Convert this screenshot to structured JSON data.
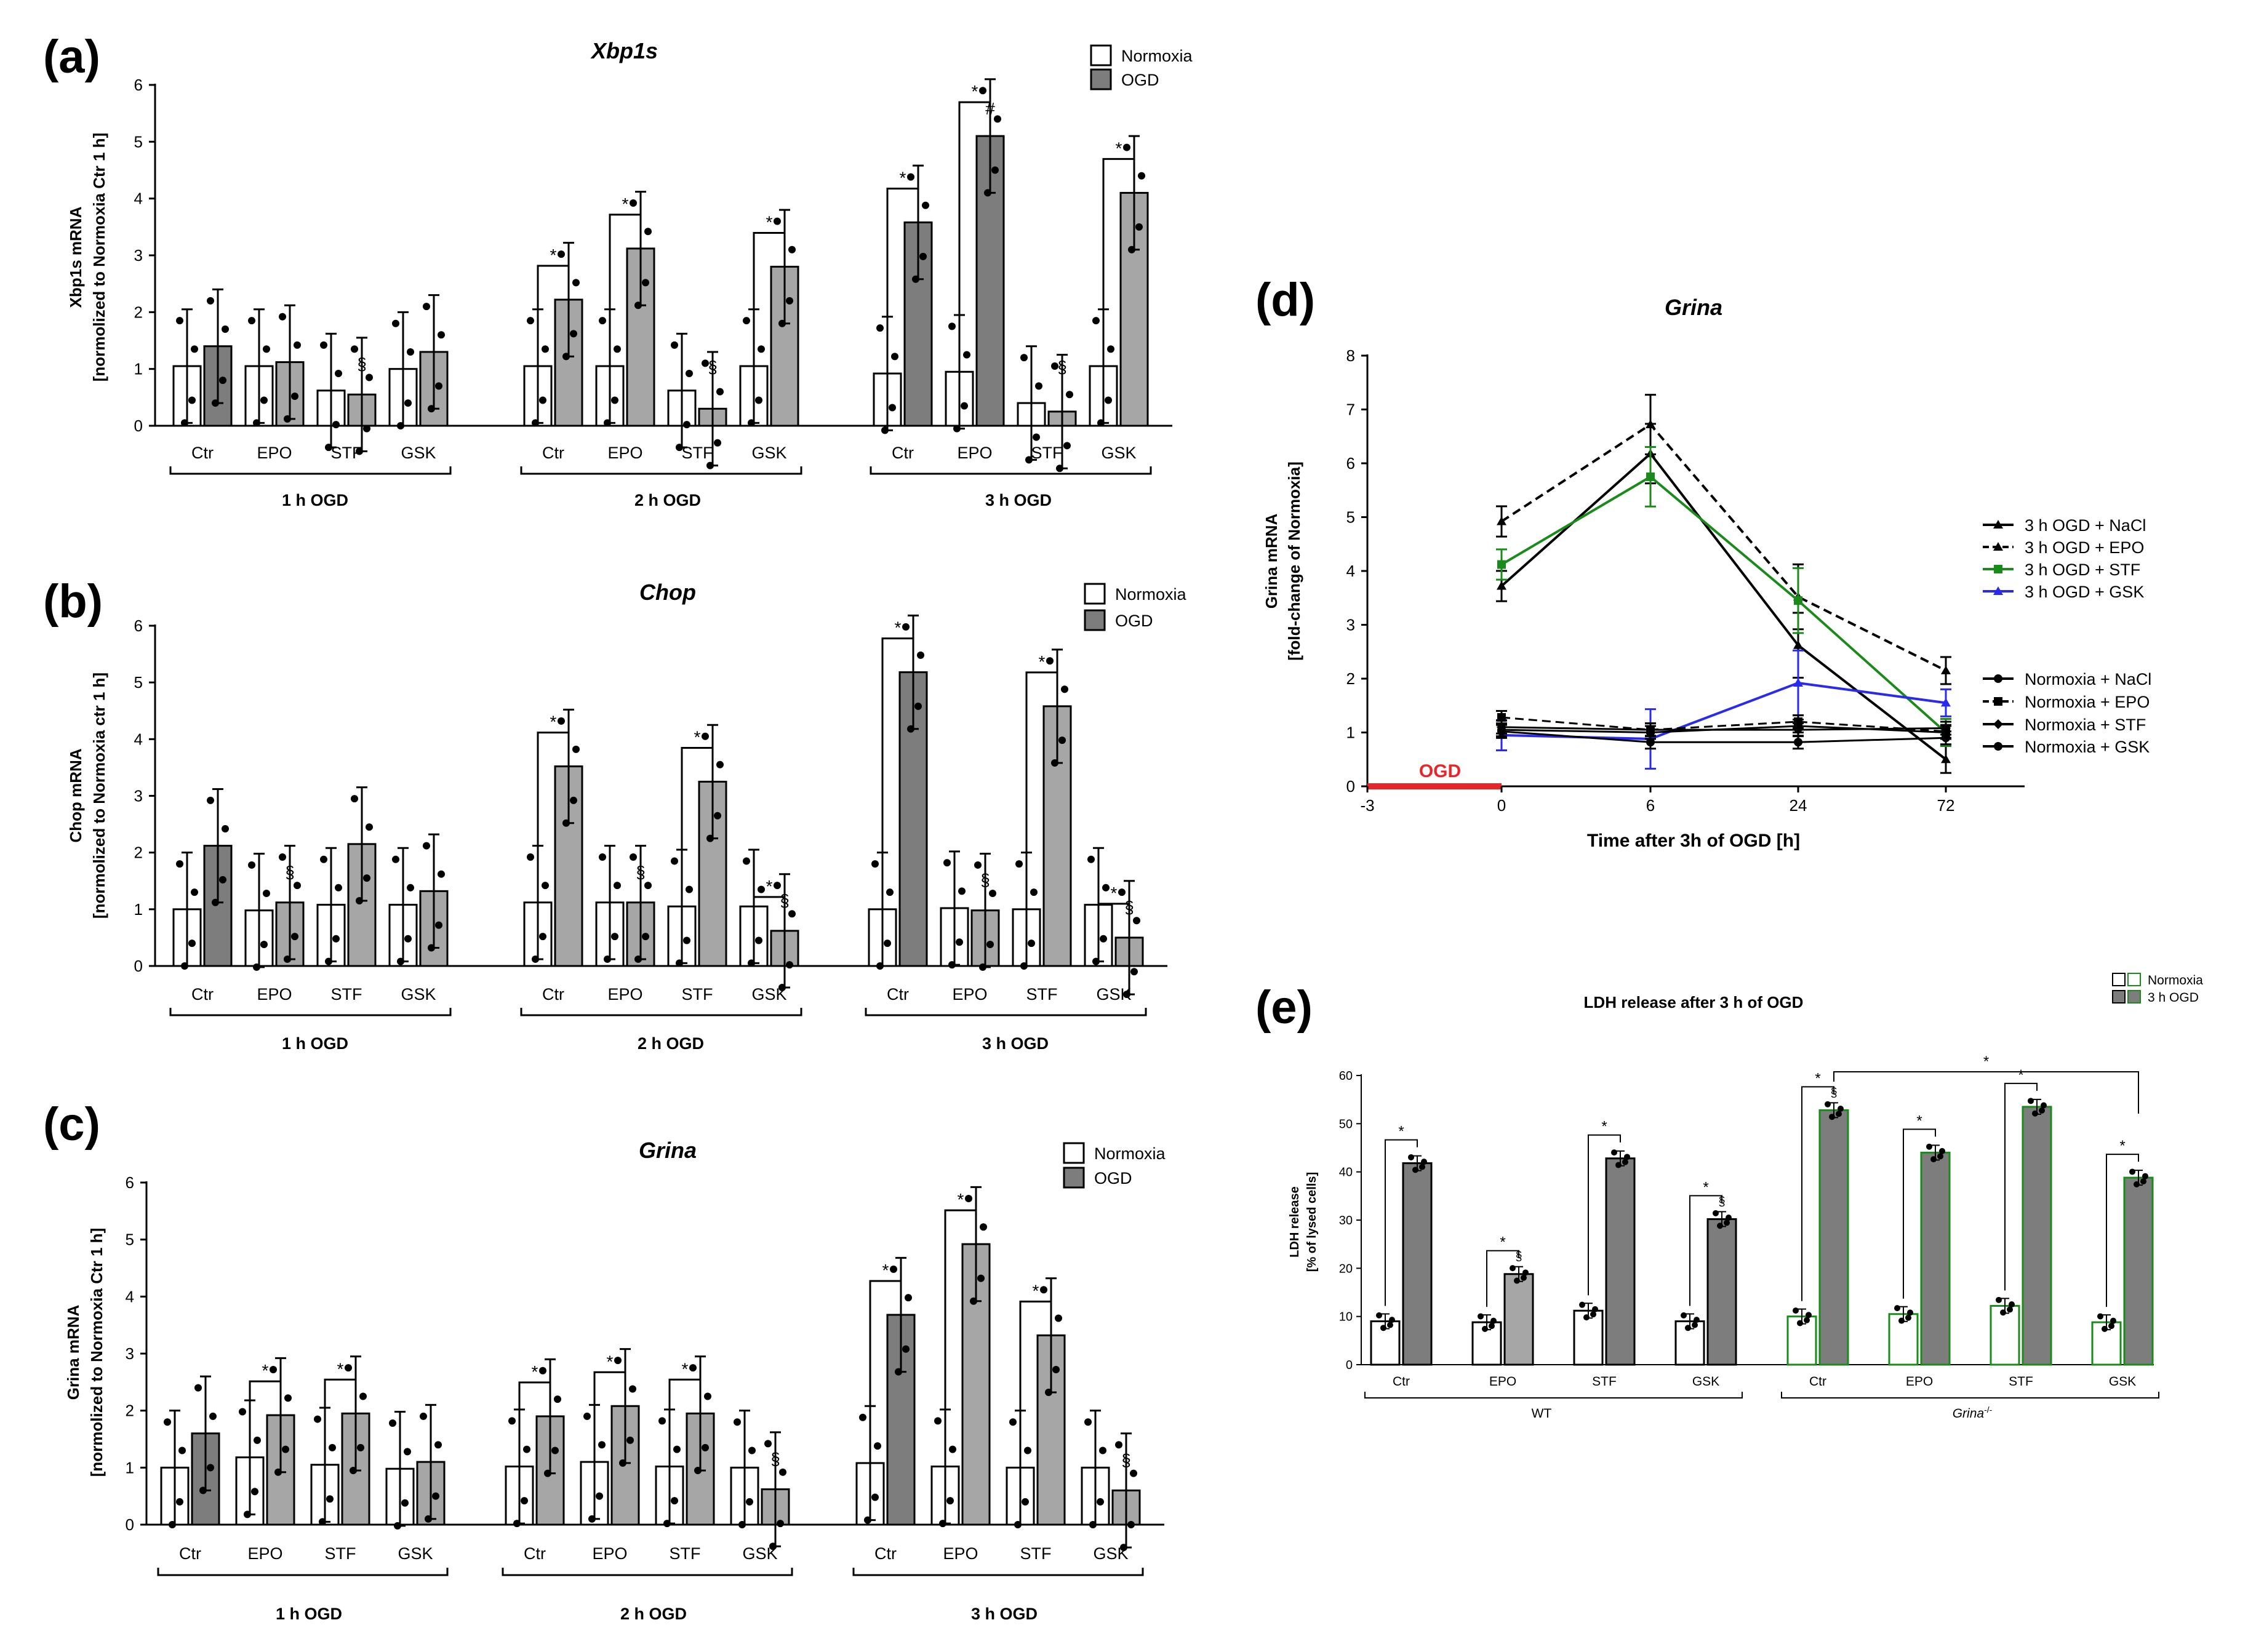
{
  "figure": {
    "panels": [
      "(a)",
      "(b)",
      "(c)",
      "(d)",
      "(e)"
    ]
  },
  "chart_data": [
    {
      "id": "a",
      "type": "bar",
      "title": "Xbp1s",
      "ylabel_line1": "Xbp1s mRNA",
      "ylabel_line2": "[normolized to Normoxia Ctr 1 h]",
      "ylim": [
        0,
        6
      ],
      "yticks": [
        "0",
        "1",
        "2",
        "3",
        "4",
        "5",
        "6"
      ],
      "legend": [
        "Normoxia",
        "OGD"
      ],
      "groups": [
        "1 h OGD",
        "2 h OGD",
        "3 h OGD"
      ],
      "categories": [
        "Ctr",
        "EPO",
        "STF",
        "GSK"
      ],
      "series": [
        {
          "name": "Normoxia",
          "values": [
            [
              1.05,
              1.05,
              0.62,
              1.0
            ],
            [
              1.05,
              1.05,
              0.62,
              1.05
            ],
            [
              0.92,
              0.95,
              0.4,
              1.05
            ]
          ]
        },
        {
          "name": "OGD",
          "values": [
            [
              1.4,
              1.12,
              0.55,
              1.3
            ],
            [
              2.22,
              3.12,
              0.3,
              2.8
            ],
            [
              3.58,
              5.1,
              0.25,
              4.1
            ]
          ]
        }
      ],
      "significance": [
        "*",
        "*",
        "*",
        "*",
        "*",
        "*",
        "#",
        "§",
        "§",
        "§"
      ]
    },
    {
      "id": "b",
      "type": "bar",
      "title": "Chop",
      "ylabel_line1": "Chop mRNA",
      "ylabel_line2": "[normolized to Normoxia ctr 1 h]",
      "ylim": [
        0,
        6
      ],
      "yticks": [
        "0",
        "1",
        "2",
        "3",
        "4",
        "5",
        "6"
      ],
      "legend": [
        "Normoxia",
        "OGD"
      ],
      "groups": [
        "1 h OGD",
        "2 h OGD",
        "3 h OGD"
      ],
      "categories": [
        "Ctr",
        "EPO",
        "STF",
        "GSK"
      ],
      "series": [
        {
          "name": "Normoxia",
          "values": [
            [
              1.0,
              0.98,
              1.08,
              1.08
            ],
            [
              1.12,
              1.12,
              1.05,
              1.05
            ],
            [
              1.0,
              1.02,
              1.0,
              1.08
            ]
          ]
        },
        {
          "name": "OGD",
          "values": [
            [
              2.12,
              1.12,
              2.15,
              1.32
            ],
            [
              3.52,
              1.12,
              3.25,
              0.62
            ],
            [
              5.18,
              0.98,
              4.58,
              0.5
            ]
          ]
        }
      ],
      "significance": [
        "*",
        "*",
        "*",
        "*",
        "*",
        "*",
        "§",
        "§",
        "§",
        "§",
        "§"
      ]
    },
    {
      "id": "c",
      "type": "bar",
      "title": "Grina",
      "ylabel_line1": "Grina mRNA",
      "ylabel_line2": "[normolized to Normoxia Ctr 1 h]",
      "ylim": [
        0,
        6
      ],
      "yticks": [
        "0",
        "1",
        "2",
        "3",
        "4",
        "5",
        "6"
      ],
      "legend": [
        "Normoxia",
        "OGD"
      ],
      "groups": [
        "1 h OGD",
        "2 h OGD",
        "3 h OGD"
      ],
      "categories": [
        "Ctr",
        "EPO",
        "STF",
        "GSK"
      ],
      "series": [
        {
          "name": "Normoxia",
          "values": [
            [
              1.0,
              1.18,
              1.05,
              0.98
            ],
            [
              1.02,
              1.1,
              1.02,
              1.0
            ],
            [
              1.08,
              1.02,
              1.0,
              1.0
            ]
          ]
        },
        {
          "name": "OGD",
          "values": [
            [
              1.6,
              1.92,
              1.95,
              1.1
            ],
            [
              1.9,
              2.08,
              1.95,
              0.62
            ],
            [
              3.68,
              4.92,
              3.32,
              0.6
            ]
          ]
        }
      ],
      "significance": [
        "*",
        "*",
        "*",
        "*",
        "*",
        "*",
        "*",
        "*",
        "§",
        "§"
      ]
    },
    {
      "id": "d",
      "type": "line",
      "title": "Grina",
      "ylabel_line1": "Grina mRNA",
      "ylabel_line2": "[fold-change of Normoxia]",
      "xlabel": "Time after 3h of OGD [h]",
      "xticks": [
        "-3",
        "0",
        "6",
        "24",
        "72"
      ],
      "ylim": [
        0,
        8
      ],
      "yticks": [
        "0",
        "1",
        "2",
        "3",
        "4",
        "5",
        "6",
        "7",
        "8"
      ],
      "annotation": "OGD",
      "series": [
        {
          "name": "3 h OGD + NaCl",
          "color": "#000000",
          "dash": "solid",
          "values": [
            3.72,
            6.18,
            2.62,
            0.5
          ]
        },
        {
          "name": "3 h OGD + EPO",
          "color": "#000000",
          "dash": "dashed",
          "values": [
            4.92,
            6.72,
            3.52,
            2.15
          ]
        },
        {
          "name": "3 h OGD + STF",
          "color": "#1a8a1a",
          "dash": "solid",
          "values": [
            4.12,
            5.75,
            3.45,
            1.0
          ]
        },
        {
          "name": "3 h OGD + GSK",
          "color": "#2a2aee",
          "dash": "solid",
          "values": [
            0.95,
            0.88,
            1.92,
            1.55
          ]
        },
        {
          "name": "Normoxia + NaCl",
          "color": "#000000",
          "dash": "solid",
          "values": [
            1.02,
            0.82,
            0.82,
            0.9
          ]
        },
        {
          "name": "Normoxia + EPO",
          "color": "#000000",
          "dash": "dashed",
          "values": [
            1.28,
            1.05,
            1.2,
            1.02
          ]
        },
        {
          "name": "Normoxia + STF",
          "color": "#000000",
          "dash": "solid",
          "values": [
            1.1,
            1.05,
            1.05,
            1.08
          ]
        },
        {
          "name": "Normoxia + GSK",
          "color": "#000000",
          "dash": "solid",
          "values": [
            1.05,
            1.0,
            1.12,
            1.0
          ]
        }
      ]
    },
    {
      "id": "e",
      "type": "bar",
      "title": "LDH release after 3 h of OGD",
      "ylabel_line1": "LDH release",
      "ylabel_line2": "[% of lysed cells]",
      "ylim": [
        0,
        60
      ],
      "yticks": [
        "0",
        "10",
        "20",
        "30",
        "40",
        "50",
        "60"
      ],
      "legend": [
        "Normoxia",
        "3 h OGD"
      ],
      "groups": [
        "WT",
        "Grina-/-"
      ],
      "categories": [
        "Ctr",
        "EPO",
        "STF",
        "GSK"
      ],
      "series": [
        {
          "name": "Normoxia",
          "values": [
            [
              9.0,
              8.8,
              11.2,
              9.0
            ],
            [
              10.0,
              10.5,
              12.2,
              8.8
            ]
          ]
        },
        {
          "name": "3 h OGD",
          "values": [
            [
              41.8,
              18.8,
              42.8,
              30.2
            ],
            [
              52.8,
              44.0,
              53.5,
              38.8
            ]
          ]
        }
      ],
      "significance": [
        "*",
        "*",
        "*",
        "*",
        "*",
        "*",
        "*",
        "*",
        "*",
        "§",
        "§",
        "§"
      ]
    }
  ]
}
